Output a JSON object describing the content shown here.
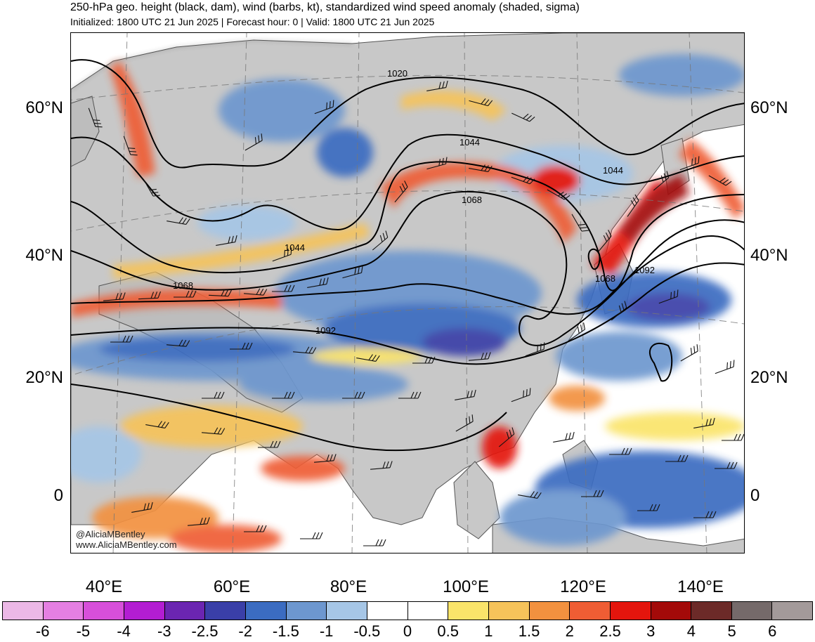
{
  "header": {
    "title": "250-hPa geo. height (black, dam), wind (barbs, kt), standardized wind speed anomaly (shaded, sigma)",
    "subtitle": "Initialized: 1800 UTC 21 Jun 2025 | Forecast hour: 0 | Valid: 1800 UTC 21 Jun 2025"
  },
  "map": {
    "lat_labels": [
      "60°N",
      "40°N",
      "20°N",
      "0"
    ],
    "lon_labels": [
      "40°E",
      "60°E",
      "80°E",
      "100°E",
      "120°E",
      "140°E"
    ],
    "contour_labels": [
      "1020",
      "1044",
      "1044",
      "1068",
      "1044",
      "1068",
      "1092",
      "1068",
      "1092"
    ],
    "credit_handle": "@AliciaMBentley",
    "credit_site": "www.AliciaMBentley.com",
    "land_color": "#c8c8c8",
    "ocean_color": "#ffffff"
  },
  "colorbar": {
    "labels": [
      "-6",
      "-5",
      "-4",
      "-3",
      "-2.5",
      "-2",
      "-1.5",
      "-1",
      "-0.5",
      "0",
      "0.5",
      "1",
      "1.5",
      "2",
      "2.5",
      "3",
      "4",
      "5",
      "6"
    ],
    "colors": [
      "#ecb8e6",
      "#e57fe2",
      "#d74fda",
      "#b31dd2",
      "#6b25b1",
      "#3a3fa8",
      "#3b6cc1",
      "#6d97cf",
      "#a6c6e6",
      "#ffffff",
      "#ffffff",
      "#fae46a",
      "#f6c35a",
      "#f2913f",
      "#ef5d34",
      "#e4150d",
      "#a30a09",
      "#6c2a28",
      "#756a6a",
      "#a39a9a"
    ]
  }
}
